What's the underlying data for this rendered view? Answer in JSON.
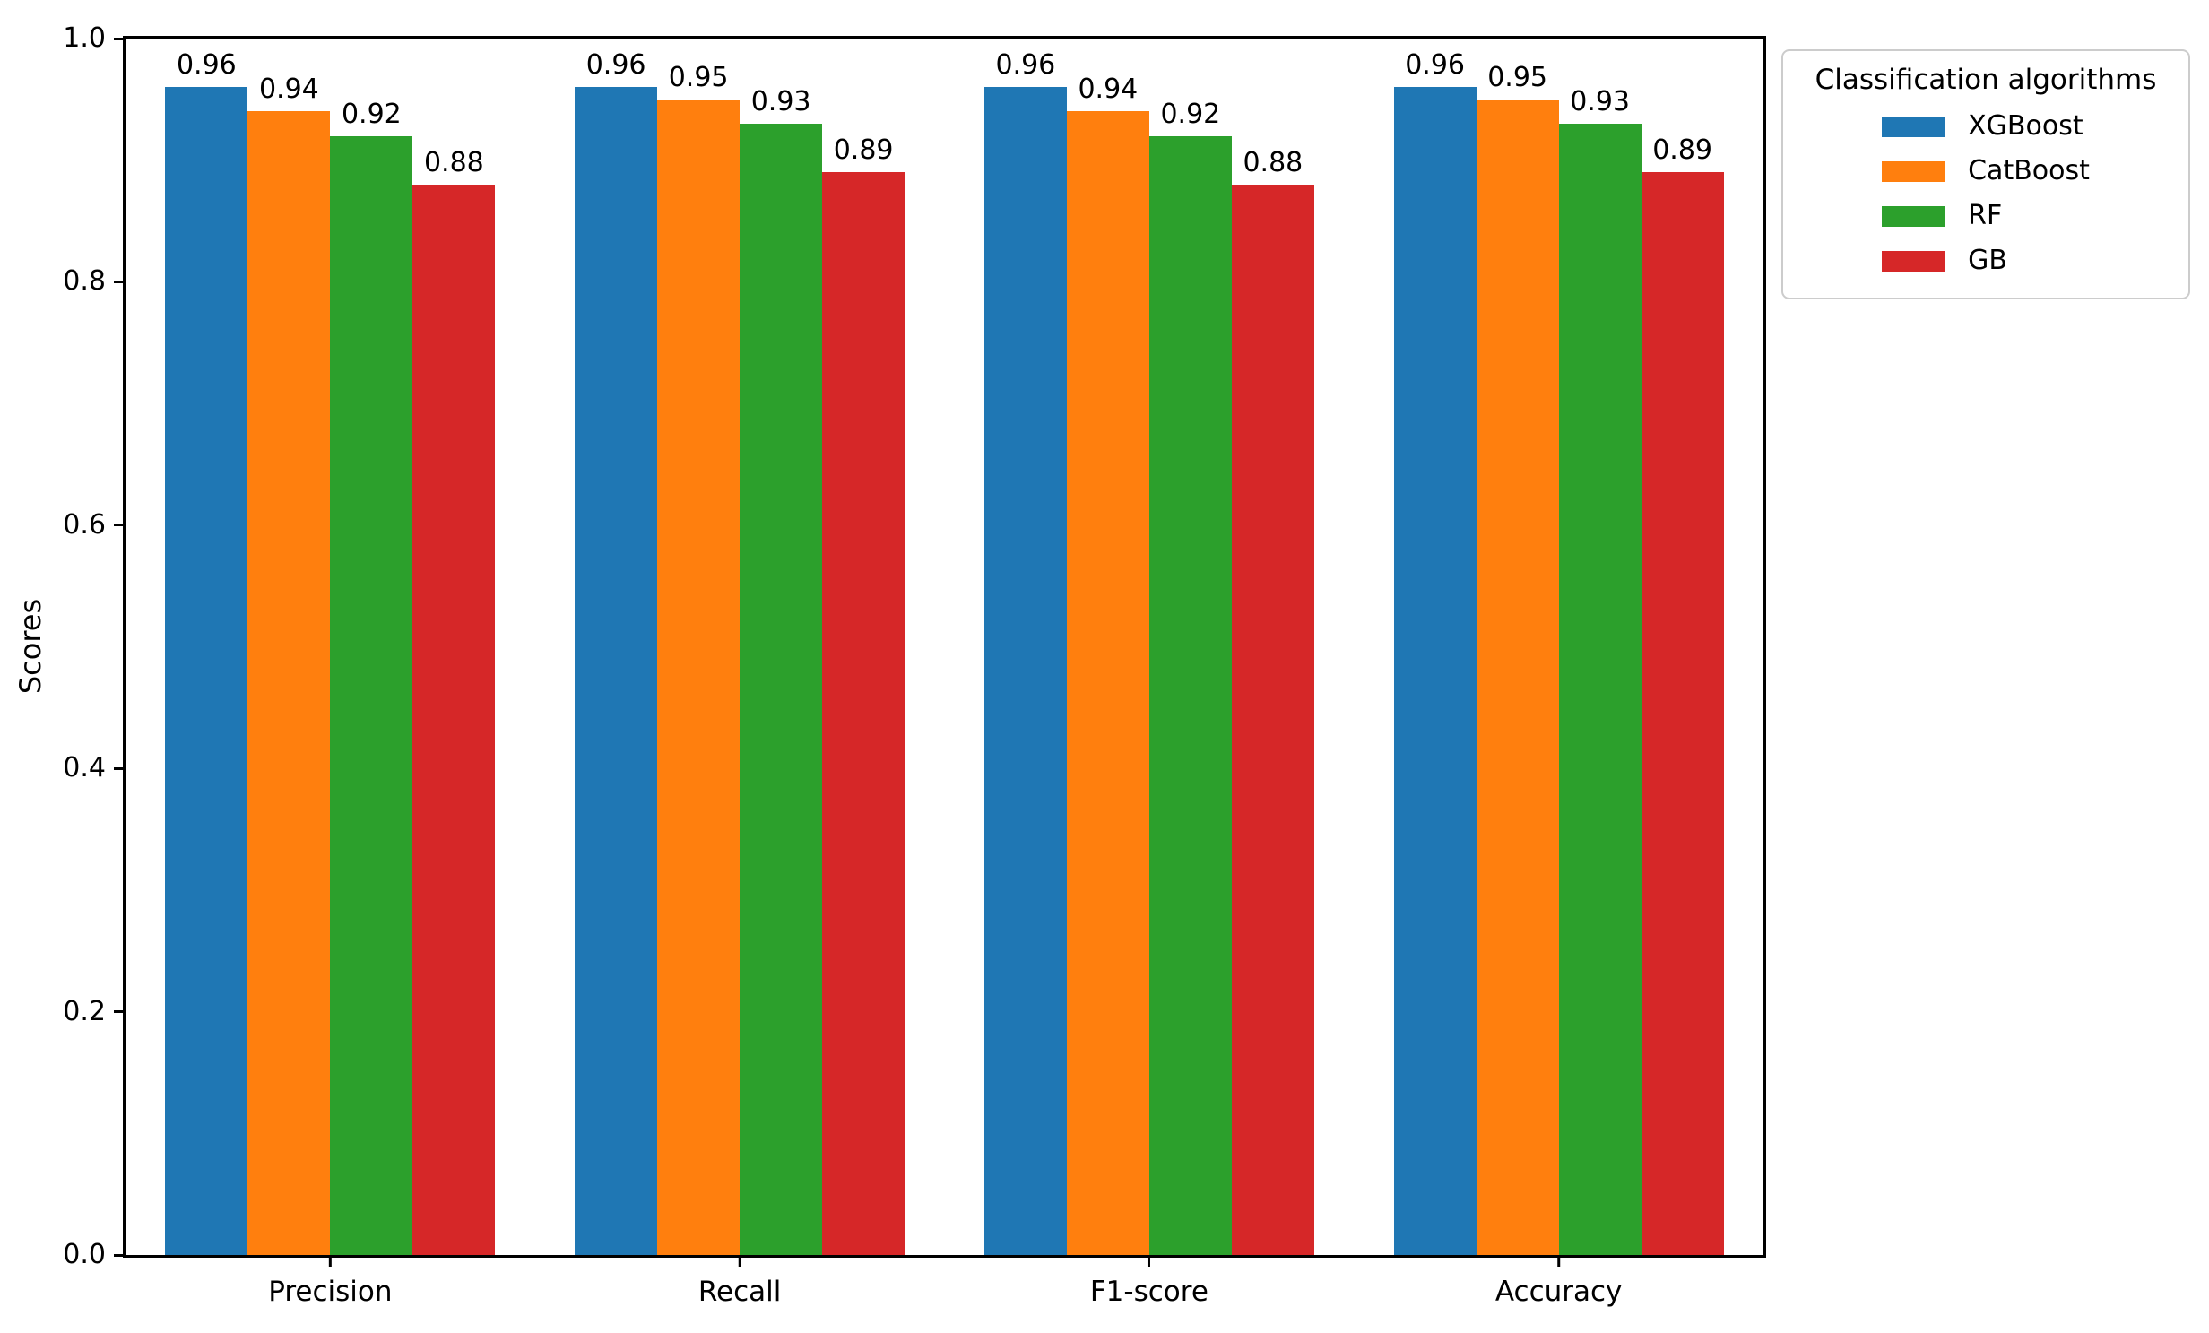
{
  "chart_data": {
    "type": "bar",
    "title": "",
    "xlabel": "",
    "ylabel": "Scores",
    "ylim": [
      0.0,
      1.0
    ],
    "ytick_labels": [
      "0.0",
      "0.2",
      "0.4",
      "0.6",
      "0.8",
      "1.0"
    ],
    "categories": [
      "Precision",
      "Recall",
      "F1-score",
      "Accuracy"
    ],
    "series": [
      {
        "name": "XGBoost",
        "color": "#1f77b4",
        "values": [
          0.96,
          0.96,
          0.96,
          0.96
        ]
      },
      {
        "name": "CatBoost",
        "color": "#ff7f0e",
        "values": [
          0.94,
          0.95,
          0.94,
          0.95
        ]
      },
      {
        "name": "RF",
        "color": "#2ca02c",
        "values": [
          0.92,
          0.93,
          0.92,
          0.93
        ]
      },
      {
        "name": "GB",
        "color": "#d62728",
        "values": [
          0.88,
          0.89,
          0.88,
          0.89
        ]
      }
    ],
    "bar_value_labels_decimals": 2,
    "grid": false,
    "plot_background": "#ffffff",
    "spine_color": "#000000",
    "legend": {
      "title": "Classification algorithms",
      "position": "outside-upper-right",
      "border_color": "#cccccc"
    }
  }
}
